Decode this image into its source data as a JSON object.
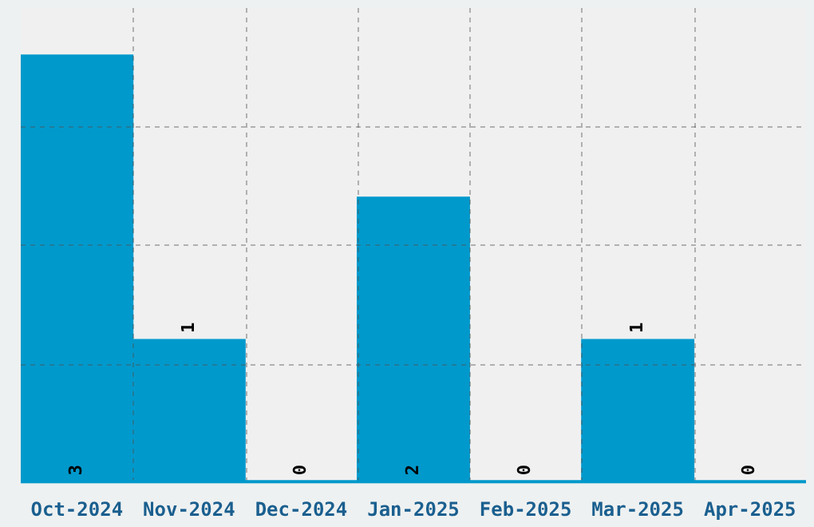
{
  "chart_data": {
    "type": "bar",
    "categories": [
      "Oct-2024",
      "Nov-2024",
      "Dec-2024",
      "Jan-2025",
      "Feb-2025",
      "Mar-2025",
      "Apr-2025"
    ],
    "values": [
      3,
      1,
      0,
      2,
      0,
      1,
      0
    ],
    "color": "#0099cc",
    "ylim": [
      0,
      3.33
    ],
    "yticks": [
      {
        "value": 0.83,
        "label": null
      },
      {
        "value": 1.67,
        "label": null
      },
      {
        "value": 2.5,
        "label": null
      }
    ],
    "grid": true,
    "tick_labels": "x",
    "data_labels": true
  }
}
